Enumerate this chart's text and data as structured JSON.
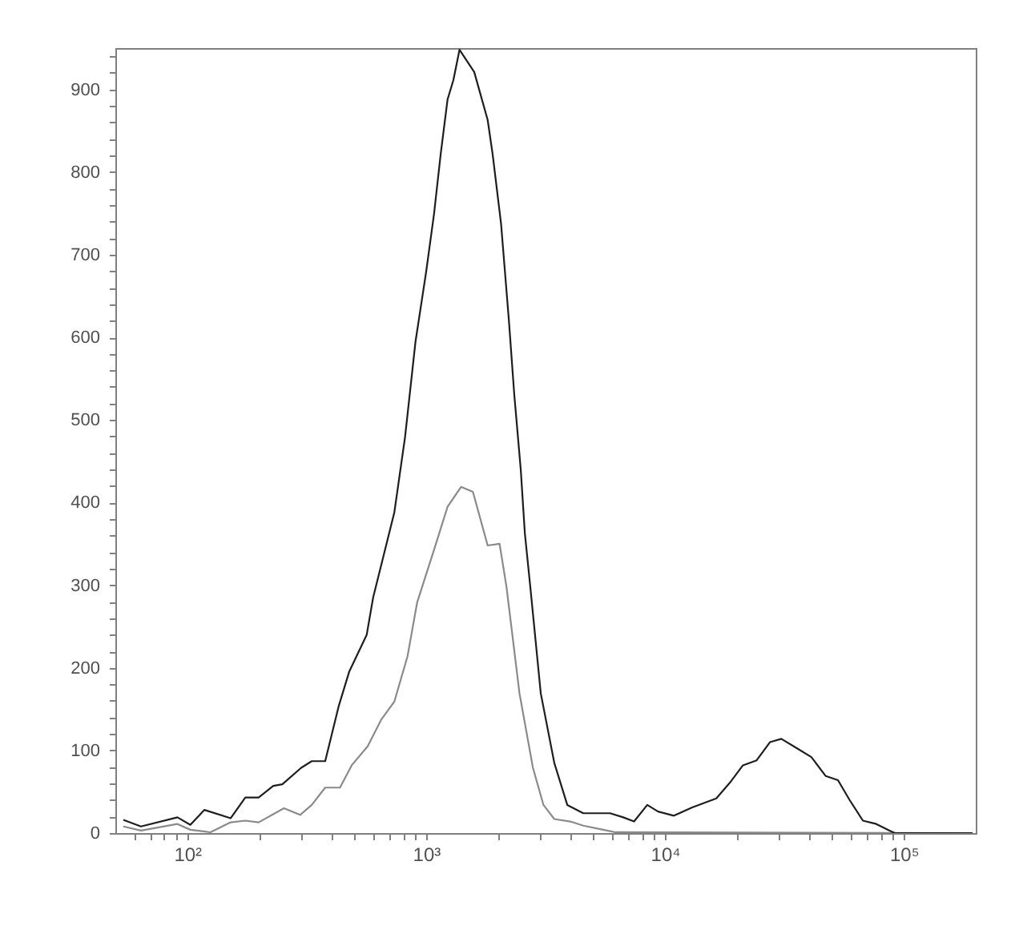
{
  "chart_data": {
    "type": "line",
    "log": "x",
    "line_style": "solid",
    "xlim": [
      50,
      200000
    ],
    "ylim": [
      0,
      950
    ],
    "xticks": [
      {
        "value": 60,
        "label": null
      },
      {
        "value": 70,
        "label": null
      },
      {
        "value": 80,
        "label": null
      },
      {
        "value": 90,
        "label": null
      },
      {
        "value": 100,
        "label": "10²"
      },
      {
        "value": 200,
        "label": null
      },
      {
        "value": 300,
        "label": null
      },
      {
        "value": 400,
        "label": null
      },
      {
        "value": 500,
        "label": null
      },
      {
        "value": 600,
        "label": null
      },
      {
        "value": 700,
        "label": null
      },
      {
        "value": 800,
        "label": null
      },
      {
        "value": 900,
        "label": null
      },
      {
        "value": 1000,
        "label": "10³"
      },
      {
        "value": 2000,
        "label": null
      },
      {
        "value": 3000,
        "label": null
      },
      {
        "value": 4000,
        "label": null
      },
      {
        "value": 5000,
        "label": null
      },
      {
        "value": 6000,
        "label": null
      },
      {
        "value": 7000,
        "label": null
      },
      {
        "value": 8000,
        "label": null
      },
      {
        "value": 9000,
        "label": null
      },
      {
        "value": 10000,
        "label": "10⁴"
      },
      {
        "value": 20000,
        "label": null
      },
      {
        "value": 30000,
        "label": null
      },
      {
        "value": 40000,
        "label": null
      },
      {
        "value": 50000,
        "label": null
      },
      {
        "value": 60000,
        "label": null
      },
      {
        "value": 70000,
        "label": null
      },
      {
        "value": 80000,
        "label": null
      },
      {
        "value": 90000,
        "label": null
      },
      {
        "value": 100000,
        "label": "10⁵"
      }
    ],
    "yticks": [
      0,
      {
        "value": 20,
        "label": null
      },
      {
        "value": 40,
        "label": null
      },
      {
        "value": 60,
        "label": null
      },
      {
        "value": 80,
        "label": null
      },
      100,
      {
        "value": 120,
        "label": null
      },
      {
        "value": 140,
        "label": null
      },
      {
        "value": 160,
        "label": null
      },
      {
        "value": 180,
        "label": null
      },
      200,
      {
        "value": 220,
        "label": null
      },
      {
        "value": 240,
        "label": null
      },
      {
        "value": 260,
        "label": null
      },
      {
        "value": 280,
        "label": null
      },
      300,
      {
        "value": 320,
        "label": null
      },
      {
        "value": 340,
        "label": null
      },
      {
        "value": 360,
        "label": null
      },
      {
        "value": 380,
        "label": null
      },
      400,
      {
        "value": 420,
        "label": null
      },
      {
        "value": 440,
        "label": null
      },
      {
        "value": 460,
        "label": null
      },
      {
        "value": 480,
        "label": null
      },
      500,
      {
        "value": 520,
        "label": null
      },
      {
        "value": 540,
        "label": null
      },
      {
        "value": 560,
        "label": null
      },
      {
        "value": 580,
        "label": null
      },
      600,
      {
        "value": 620,
        "label": null
      },
      {
        "value": 640,
        "label": null
      },
      {
        "value": 660,
        "label": null
      },
      {
        "value": 680,
        "label": null
      },
      700,
      {
        "value": 720,
        "label": null
      },
      {
        "value": 740,
        "label": null
      },
      {
        "value": 760,
        "label": null
      },
      {
        "value": 780,
        "label": null
      },
      800,
      {
        "value": 820,
        "label": null
      },
      {
        "value": 840,
        "label": null
      },
      {
        "value": 860,
        "label": null
      },
      {
        "value": 880,
        "label": null
      },
      900,
      {
        "value": 920,
        "label": null
      },
      {
        "value": 940,
        "label": null
      }
    ],
    "series": [
      {
        "color": "#8a8a8a",
        "x": [
          54,
          64,
          91,
          103,
          125,
          152,
          175,
          199,
          254,
          297,
          332,
          378,
          436,
          488,
          569,
          648,
          736,
          836,
          917,
          1080,
          1230,
          1400,
          1570,
          1810,
          2030,
          2170,
          2460,
          2800,
          3100,
          3440,
          4010,
          4550,
          5310,
          6190,
          194000
        ],
        "values": [
          8,
          3,
          11,
          4,
          1,
          13,
          15,
          13,
          30,
          22,
          34,
          55,
          55,
          82,
          105,
          137,
          159,
          214,
          279,
          343,
          395,
          419,
          413,
          348,
          350,
          298,
          169,
          79,
          34,
          17,
          14,
          9,
          5,
          1,
          0
        ]
      },
      {
        "color": "#1e1e1e",
        "x": [
          54,
          64,
          91,
          103,
          118,
          152,
          175,
          199,
          229,
          250,
          300,
          332,
          378,
          430,
          476,
          564,
          600,
          736,
          816,
          903,
          1000,
          1080,
          1150,
          1230,
          1300,
          1380,
          1590,
          1810,
          1900,
          2060,
          2220,
          2340,
          2490,
          2590,
          2730,
          3020,
          3440,
          3900,
          4550,
          5890,
          6690,
          7420,
          8430,
          9350,
          10900,
          13000,
          16400,
          18700,
          21200,
          24200,
          27500,
          30700,
          35500,
          41000,
          47100,
          53000,
          59300,
          67400,
          76700,
          87200,
          91700,
          194000
        ],
        "values": [
          16,
          8,
          19,
          10,
          28,
          18,
          43,
          43,
          57,
          59,
          79,
          87,
          87,
          153,
          195,
          240,
          285,
          388,
          479,
          595,
          679,
          750,
          821,
          888,
          911,
          948,
          921,
          863,
          821,
          737,
          621,
          530,
          440,
          363,
          298,
          169,
          85,
          34,
          24,
          24,
          19,
          14,
          34,
          26,
          21,
          31,
          42,
          61,
          82,
          88,
          110,
          114,
          103,
          92,
          69,
          64,
          40,
          15,
          11,
          3,
          0,
          0
        ]
      }
    ]
  }
}
